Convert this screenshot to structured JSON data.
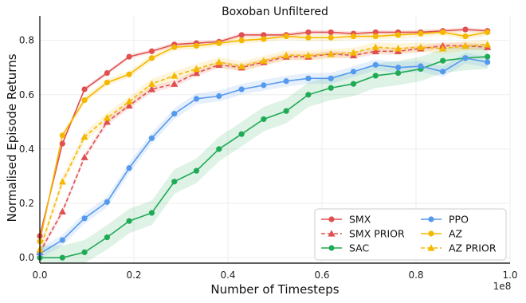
{
  "chart_data": {
    "type": "line",
    "title": "Boxoban Unfiltered",
    "xlabel": "Number of Timesteps",
    "ylabel": "Normalised Episode Returns",
    "x_scale_label": "1e8",
    "xlim": [
      0,
      1.0
    ],
    "ylim": [
      -0.02,
      0.89
    ],
    "x_ticks": [
      "0.0",
      "0.2",
      "0.4",
      "0.6",
      "0.8",
      "1.0"
    ],
    "y_ticks": [
      "0.0",
      "0.2",
      "0.4",
      "0.6",
      "0.8"
    ],
    "grid": true,
    "legend_position": "lower-right",
    "x": [
      0.0,
      0.048,
      0.095,
      0.143,
      0.19,
      0.238,
      0.286,
      0.333,
      0.381,
      0.429,
      0.476,
      0.524,
      0.571,
      0.619,
      0.667,
      0.714,
      0.762,
      0.81,
      0.857,
      0.905,
      0.952
    ],
    "series": [
      {
        "name": "SMX",
        "color": "#e05050",
        "marker": "circle",
        "dash": "solid",
        "values": [
          0.08,
          0.42,
          0.62,
          0.68,
          0.74,
          0.76,
          0.785,
          0.79,
          0.795,
          0.82,
          0.82,
          0.82,
          0.83,
          0.83,
          0.825,
          0.83,
          0.83,
          0.83,
          0.835,
          0.84,
          0.835
        ],
        "band": 0.008
      },
      {
        "name": "SMX PRIOR",
        "color": "#e05050",
        "marker": "triangle",
        "dash": "dashed",
        "values": [
          0.02,
          0.17,
          0.37,
          0.5,
          0.56,
          0.62,
          0.64,
          0.68,
          0.71,
          0.7,
          0.72,
          0.74,
          0.74,
          0.75,
          0.745,
          0.76,
          0.76,
          0.77,
          0.78,
          0.78,
          0.775
        ],
        "band": 0.012
      },
      {
        "name": "SAC",
        "color": "#1faa55",
        "marker": "circle",
        "dash": "solid",
        "values": [
          0.0,
          0.0,
          0.02,
          0.075,
          0.135,
          0.165,
          0.28,
          0.32,
          0.4,
          0.455,
          0.51,
          0.54,
          0.6,
          0.625,
          0.64,
          0.67,
          0.68,
          0.695,
          0.725,
          0.735,
          0.74
        ],
        "band": 0.045
      },
      {
        "name": "PPO",
        "color": "#5599ee",
        "marker": "circle",
        "dash": "solid",
        "values": [
          0.015,
          0.065,
          0.145,
          0.205,
          0.33,
          0.44,
          0.53,
          0.585,
          0.595,
          0.62,
          0.635,
          0.65,
          0.66,
          0.66,
          0.685,
          0.71,
          0.7,
          0.705,
          0.685,
          0.735,
          0.72
        ],
        "band": 0.02
      },
      {
        "name": "AZ",
        "color": "#f5b800",
        "marker": "circle",
        "dash": "solid",
        "values": [
          0.06,
          0.45,
          0.58,
          0.645,
          0.675,
          0.735,
          0.775,
          0.78,
          0.79,
          0.8,
          0.805,
          0.815,
          0.81,
          0.81,
          0.815,
          0.815,
          0.82,
          0.825,
          0.83,
          0.815,
          0.83
        ],
        "band": 0.012
      },
      {
        "name": "AZ PRIOR",
        "color": "#f5b800",
        "marker": "triangle",
        "dash": "dashed",
        "values": [
          0.03,
          0.28,
          0.445,
          0.515,
          0.575,
          0.64,
          0.67,
          0.695,
          0.72,
          0.705,
          0.725,
          0.745,
          0.745,
          0.75,
          0.755,
          0.775,
          0.77,
          0.775,
          0.77,
          0.78,
          0.785
        ],
        "band": 0.018
      }
    ],
    "legend_order": [
      0,
      3,
      1,
      4,
      2,
      5
    ]
  }
}
